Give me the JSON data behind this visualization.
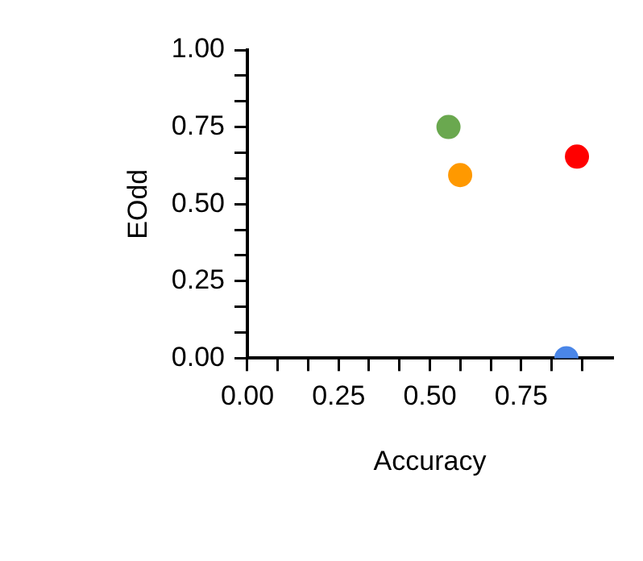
{
  "chart_data": {
    "type": "scatter",
    "xlabel": "Accuracy",
    "ylabel": "EOdd",
    "x": [
      0.551,
      0.583,
      0.903,
      0.874
    ],
    "values": [
      0.75,
      0.594,
      0.654,
      0
    ],
    "colors": [
      "#6aa84f",
      "#ff9900",
      "#ff0000",
      "#4a86e8"
    ],
    "xlim": [
      0,
      1
    ],
    "ylim": [
      0,
      1
    ],
    "xticks": [
      {
        "value": 0,
        "label": "0.00"
      },
      {
        "value": 0.0833,
        "label": null
      },
      {
        "value": 0.1667,
        "label": null
      },
      {
        "value": 0.25,
        "label": "0.25"
      },
      {
        "value": 0.3333,
        "label": null
      },
      {
        "value": 0.4167,
        "label": null
      },
      {
        "value": 0.5,
        "label": "0.50"
      },
      {
        "value": 0.5833,
        "label": null
      },
      {
        "value": 0.6667,
        "label": null
      },
      {
        "value": 0.75,
        "label": "0.75"
      },
      {
        "value": 0.8333,
        "label": null
      },
      {
        "value": 0.9167,
        "label": null
      }
    ],
    "yticks": [
      {
        "value": 0,
        "label": "0.00"
      },
      {
        "value": 0.0833,
        "label": null
      },
      {
        "value": 0.1667,
        "label": null
      },
      {
        "value": 0.25,
        "label": "0.25"
      },
      {
        "value": 0.3333,
        "label": null
      },
      {
        "value": 0.4167,
        "label": null
      },
      {
        "value": 0.5,
        "label": "0.50"
      },
      {
        "value": 0.5833,
        "label": null
      },
      {
        "value": 0.6667,
        "label": null
      },
      {
        "value": 0.75,
        "label": "0.75"
      },
      {
        "value": 0.8333,
        "label": null
      },
      {
        "value": 0.9167,
        "label": null
      },
      {
        "value": 1,
        "label": "1.00"
      }
    ],
    "grid": false,
    "legend": false,
    "marker": "circle"
  }
}
